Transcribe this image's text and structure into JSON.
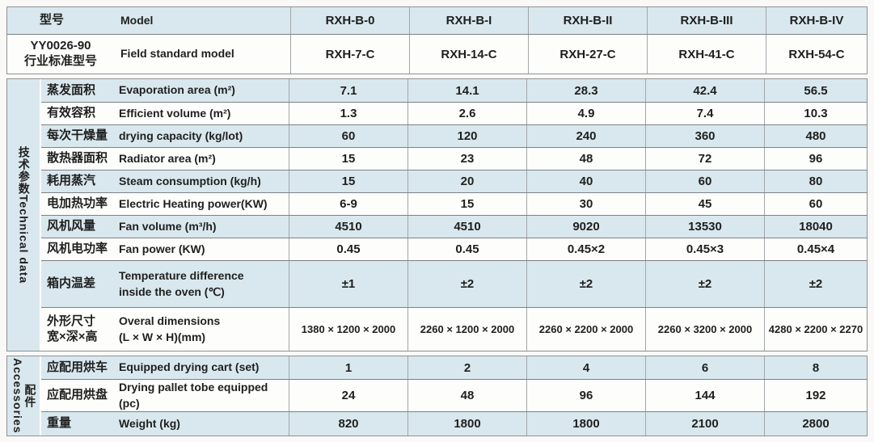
{
  "colors": {
    "row_blue": "#d9e8ee",
    "row_white": "#fdfdfc"
  },
  "header": {
    "model_zh": "型号",
    "model_en": "Model",
    "models": [
      "RXH-B-0",
      "RXH-B-I",
      "RXH-B-II",
      "RXH-B-III",
      "RXH-B-IV"
    ],
    "standard_zh_line1": "YY0026-90",
    "standard_zh_line2": "行业标准型号",
    "standard_en": "Field standard model",
    "standard_models": [
      "RXH-7-C",
      "RXH-14-C",
      "RXH-27-C",
      "RXH-41-C",
      "RXH-54-C"
    ]
  },
  "technical": {
    "label_zh": "技术参数",
    "label_en": "Technical data",
    "rows": [
      {
        "zh": "蒸发面积",
        "en": "Evaporation area (m²)",
        "values": [
          "7.1",
          "14.1",
          "28.3",
          "42.4",
          "56.5"
        ]
      },
      {
        "zh": "有效容积",
        "en": "Efficient volume (m²)",
        "values": [
          "1.3",
          "2.6",
          "4.9",
          "7.4",
          "10.3"
        ]
      },
      {
        "zh": "每次干燥量",
        "en": "drying capacity (kg/lot)",
        "values": [
          "60",
          "120",
          "240",
          "360",
          "480"
        ]
      },
      {
        "zh": "散热器面积",
        "en": "Radiator area (m²)",
        "values": [
          "15",
          "23",
          "48",
          "72",
          "96"
        ]
      },
      {
        "zh": "耗用蒸汽",
        "en": "Steam consumption (kg/h)",
        "values": [
          "15",
          "20",
          "40",
          "60",
          "80"
        ]
      },
      {
        "zh": "电加热功率",
        "en": "Electric Heating power(KW)",
        "values": [
          "6-9",
          "15",
          "30",
          "45",
          "60"
        ]
      },
      {
        "zh": "风机风量",
        "en": "Fan volume (m³/h)",
        "values": [
          "4510",
          "4510",
          "9020",
          "13530",
          "18040"
        ]
      },
      {
        "zh": "风机电功率",
        "en": "Fan power (KW)",
        "values": [
          "0.45",
          "0.45",
          "0.45×2",
          "0.45×3",
          "0.45×4"
        ]
      },
      {
        "zh": "箱内温差",
        "en": "Temperature difference",
        "en2": "inside the oven (℃)",
        "values": [
          "±1",
          "±2",
          "±2",
          "±2",
          "±2"
        ]
      },
      {
        "zh": "外形尺寸",
        "zh2": "宽×深×高",
        "en": "Overal dimensions",
        "en2": "(L × W × H)(mm)",
        "values": [
          "1380 × 1200 × 2000",
          "2260 × 1200 × 2000",
          "2260 × 2200 × 2000",
          "2260 × 3200 × 2000",
          "4280 × 2200 × 2270"
        ]
      }
    ]
  },
  "accessories": {
    "label_zh": "配件",
    "label_en": "Accessories",
    "rows": [
      {
        "zh": "应配用烘车",
        "en": "Equipped drying cart (set)",
        "values": [
          "1",
          "2",
          "4",
          "6",
          "8"
        ]
      },
      {
        "zh": "应配用烘盘",
        "en": "Drying pallet tobe equipped (pc)",
        "values": [
          "24",
          "48",
          "96",
          "144",
          "192"
        ]
      },
      {
        "zh": "重量",
        "en": "Weight (kg)",
        "values": [
          "820",
          "1800",
          "1800",
          "2100",
          "2800"
        ]
      }
    ]
  }
}
